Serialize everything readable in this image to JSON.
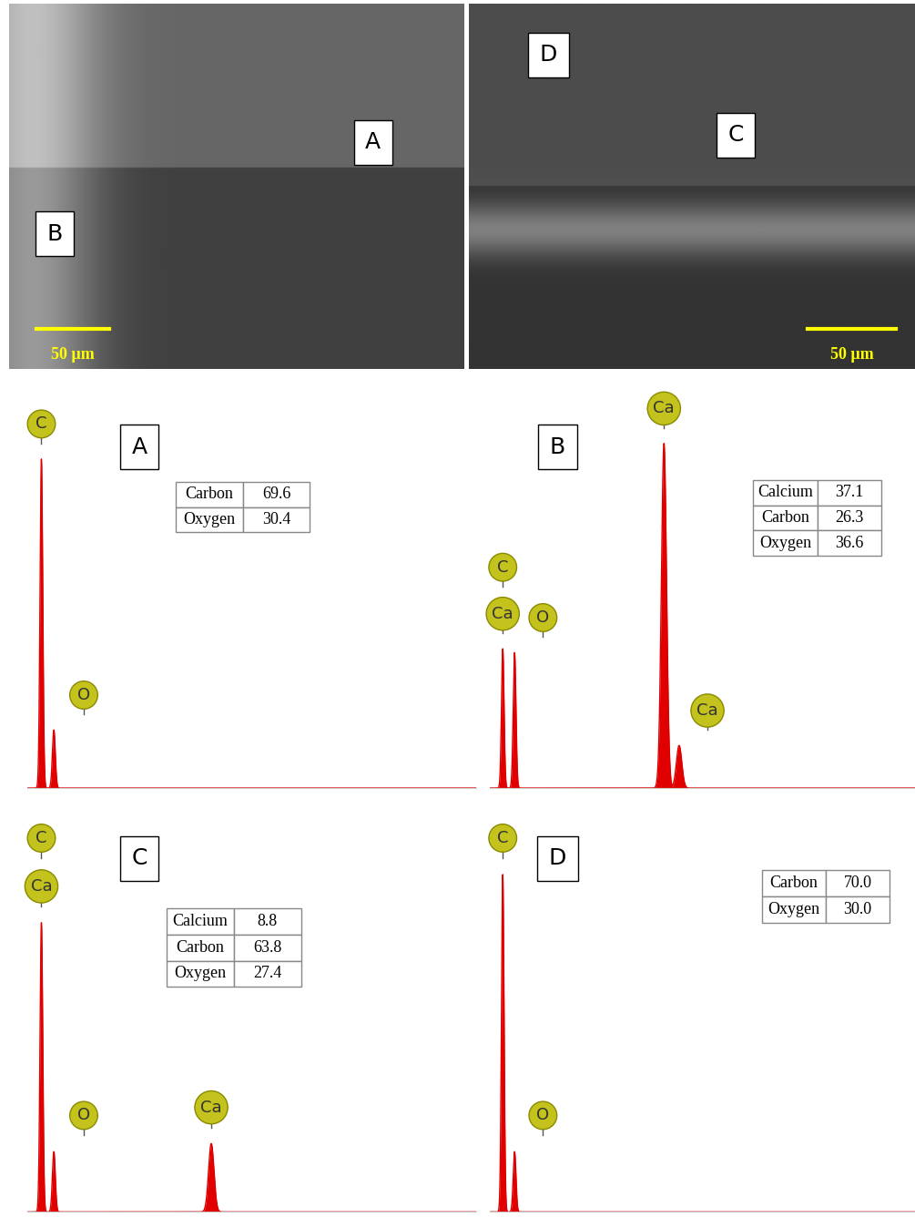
{
  "micrographs": [
    {
      "labels": [
        "A",
        "B"
      ],
      "scale_bar": "50 µm"
    },
    {
      "labels": [
        "D",
        "C"
      ],
      "scale_bar": "50 µm"
    }
  ],
  "chart_data": [
    {
      "type": "line",
      "title": "A",
      "color": "#e00000",
      "tick_labels": false,
      "xlim": [
        0,
        9
      ],
      "ylim": [
        0,
        100
      ],
      "peaks": [
        {
          "x": 0.28,
          "height": 85,
          "labels": [
            "C"
          ]
        },
        {
          "x": 0.53,
          "height": 15,
          "labels": [
            "O"
          ]
        }
      ],
      "composition": [
        [
          "Carbon",
          69.6
        ],
        [
          "Oxygen",
          30.4
        ]
      ]
    },
    {
      "type": "line",
      "title": "B",
      "color": "#e00000",
      "tick_labels": false,
      "xlim": [
        0,
        9
      ],
      "ylim": [
        0,
        100
      ],
      "peaks": [
        {
          "x": 0.28,
          "height": 36,
          "labels": [
            "C",
            "Ca"
          ]
        },
        {
          "x": 0.53,
          "height": 35,
          "labels": [
            "O"
          ]
        },
        {
          "x": 3.69,
          "height": 89,
          "labels": [
            "Ca"
          ]
        },
        {
          "x": 4.01,
          "height": 11,
          "labels": [
            "Ca"
          ]
        }
      ],
      "composition": [
        [
          "Calcium",
          37.1
        ],
        [
          "Carbon",
          26.3
        ],
        [
          "Oxygen",
          36.6
        ]
      ]
    },
    {
      "type": "line",
      "title": "C",
      "color": "#e00000",
      "tick_labels": false,
      "xlim": [
        0,
        9
      ],
      "ylim": [
        0,
        100
      ],
      "peaks": [
        {
          "x": 0.28,
          "height": 72,
          "labels": [
            "C",
            "Ca"
          ]
        },
        {
          "x": 0.53,
          "height": 15,
          "labels": [
            "O"
          ]
        },
        {
          "x": 3.69,
          "height": 17,
          "labels": [
            "Ca"
          ]
        }
      ],
      "composition": [
        [
          "Calcium",
          8.8
        ],
        [
          "Carbon",
          63.8
        ],
        [
          "Oxygen",
          27.4
        ]
      ]
    },
    {
      "type": "line",
      "title": "D",
      "color": "#e00000",
      "tick_labels": false,
      "xlim": [
        0,
        9
      ],
      "ylim": [
        0,
        100
      ],
      "peaks": [
        {
          "x": 0.28,
          "height": 84,
          "labels": [
            "C"
          ]
        },
        {
          "x": 0.53,
          "height": 15,
          "labels": [
            "O"
          ]
        }
      ],
      "composition": [
        [
          "Carbon",
          70.0
        ],
        [
          "Oxygen",
          30.0
        ]
      ]
    }
  ]
}
